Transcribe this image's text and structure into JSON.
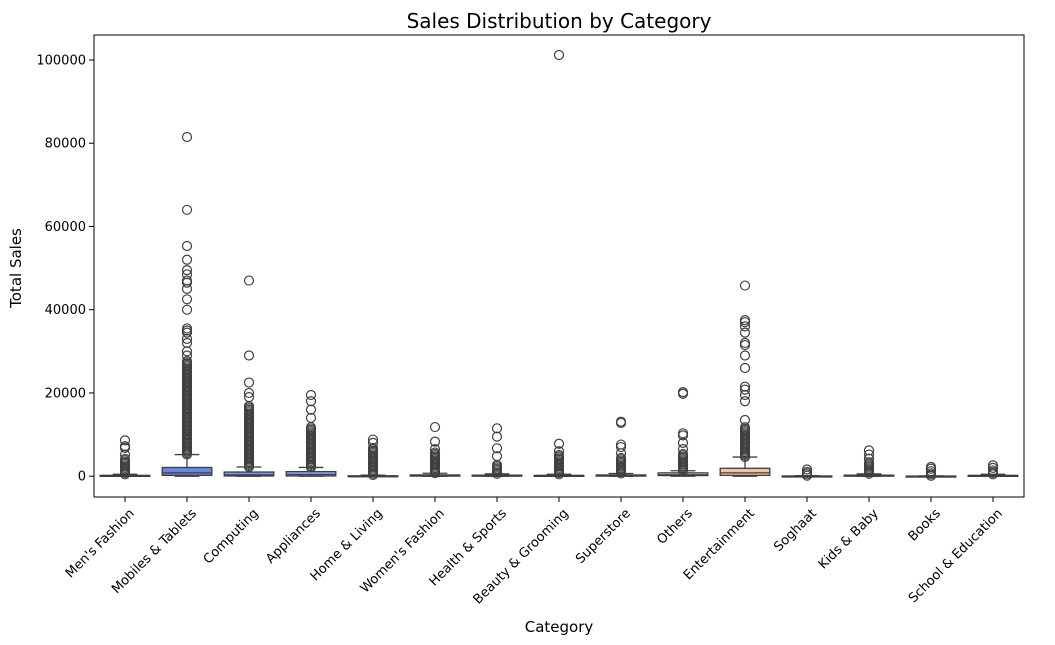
{
  "chart_data": {
    "type": "box",
    "title": "Sales Distribution by Category",
    "xlabel": "Category",
    "ylabel": "Total Sales",
    "ylim": [
      -5000,
      106000
    ],
    "yticks": [
      0,
      20000,
      40000,
      60000,
      80000,
      100000
    ],
    "grid": false,
    "legend": "none",
    "categories": [
      "Men's Fashion",
      "Mobiles & Tablets",
      "Computing",
      "Appliances",
      "Home & Living",
      "Women's Fashion",
      "Health & Sports",
      "Beauty & Grooming",
      "Superstore",
      "Others",
      "Entertainment",
      "Soghaat",
      "Kids & Baby",
      "Books",
      "School & Education"
    ],
    "colors": [
      "#5a6fd6",
      "#6a85e0",
      "#7b96ea",
      "#8da6f0",
      "#9eb5f5",
      "#b0c3f6",
      "#c1cdf4",
      "#d1d7ef",
      "#e0dbe6",
      "#ead3c6",
      "#f3c3a8",
      "#f4ae8f",
      "#ef9878",
      "#e47f63",
      "#d6604f"
    ],
    "series": [
      {
        "category": "Men's Fashion",
        "q1": 0,
        "median": 40,
        "q3": 200,
        "whisker_low": 0,
        "whisker_high": 450,
        "outlier_range": [
          450,
          4500
        ],
        "outliers": [
          5200,
          6800,
          7200,
          8600
        ]
      },
      {
        "category": "Mobiles & Tablets",
        "q1": 200,
        "median": 800,
        "q3": 2100,
        "whisker_low": 0,
        "whisker_high": 5200,
        "outlier_range": [
          5200,
          28000
        ],
        "outliers": [
          29000,
          30000,
          32000,
          33000,
          34500,
          35000,
          35500,
          40000,
          42500,
          45000,
          46500,
          47000,
          48500,
          49500,
          52000,
          55300,
          64000,
          81500
        ]
      },
      {
        "category": "Computing",
        "q1": 50,
        "median": 300,
        "q3": 1000,
        "whisker_low": 0,
        "whisker_high": 2200,
        "outlier_range": [
          2200,
          17000
        ],
        "outliers": [
          19000,
          20000,
          22500,
          29000,
          47000
        ]
      },
      {
        "category": "Appliances",
        "q1": 50,
        "median": 400,
        "q3": 1100,
        "whisker_low": 0,
        "whisker_high": 2100,
        "outlier_range": [
          2100,
          12000
        ],
        "outliers": [
          14000,
          16000,
          18000,
          19500
        ]
      },
      {
        "category": "Home & Living",
        "q1": 0,
        "median": 20,
        "q3": 100,
        "whisker_low": 0,
        "whisker_high": 250,
        "outlier_range": [
          250,
          7000
        ],
        "outliers": [
          8000,
          8800
        ]
      },
      {
        "category": "Women's Fashion",
        "q1": 20,
        "median": 100,
        "q3": 300,
        "whisker_low": 0,
        "whisker_high": 700,
        "outlier_range": [
          700,
          6000
        ],
        "outliers": [
          6500,
          8300,
          11800
        ]
      },
      {
        "category": "Health & Sports",
        "q1": 10,
        "median": 60,
        "q3": 250,
        "whisker_low": 0,
        "whisker_high": 550,
        "outlier_range": [
          550,
          3000
        ],
        "outliers": [
          4800,
          6700,
          9500,
          11500
        ]
      },
      {
        "category": "Beauty & Grooming",
        "q1": 10,
        "median": 50,
        "q3": 200,
        "whisker_low": 0,
        "whisker_high": 450,
        "outlier_range": [
          450,
          5200
        ],
        "outliers": [
          6000,
          7800,
          101200
        ]
      },
      {
        "category": "Superstore",
        "q1": 20,
        "median": 100,
        "q3": 300,
        "whisker_low": 0,
        "whisker_high": 650,
        "outlier_range": [
          650,
          4500
        ],
        "outliers": [
          5500,
          7000,
          7600,
          12800,
          13100
        ]
      },
      {
        "category": "Others",
        "q1": 150,
        "median": 350,
        "q3": 800,
        "whisker_low": 0,
        "whisker_high": 1300,
        "outlier_range": [
          1300,
          5500
        ],
        "outliers": [
          6500,
          8000,
          9800,
          10300,
          19800,
          20200
        ]
      },
      {
        "category": "Entertainment",
        "q1": 200,
        "median": 800,
        "q3": 1900,
        "whisker_low": 0,
        "whisker_high": 4600,
        "outlier_range": [
          4600,
          12000
        ],
        "outliers": [
          13500,
          18000,
          19500,
          20800,
          21500,
          26000,
          29000,
          31500,
          32000,
          34500,
          36000,
          37000,
          37500,
          45800
        ]
      },
      {
        "category": "Soghaat",
        "q1": 0,
        "median": 10,
        "q3": 50,
        "whisker_low": 0,
        "whisker_high": 120,
        "outlier_range": [
          120,
          1200
        ],
        "outliers": [
          1600
        ]
      },
      {
        "category": "Kids & Baby",
        "q1": 10,
        "median": 50,
        "q3": 250,
        "whisker_low": 0,
        "whisker_high": 550,
        "outlier_range": [
          550,
          3500
        ],
        "outliers": [
          4200,
          5200,
          6200
        ]
      },
      {
        "category": "Books",
        "q1": 0,
        "median": 10,
        "q3": 30,
        "whisker_low": 0,
        "whisker_high": 80,
        "outlier_range": [
          80,
          900
        ],
        "outliers": [
          1200,
          1800,
          2200
        ]
      },
      {
        "category": "School & Education",
        "q1": 10,
        "median": 50,
        "q3": 200,
        "whisker_low": 0,
        "whisker_high": 450,
        "outlier_range": [
          450,
          1600
        ],
        "outliers": [
          2000,
          2600
        ]
      }
    ]
  }
}
